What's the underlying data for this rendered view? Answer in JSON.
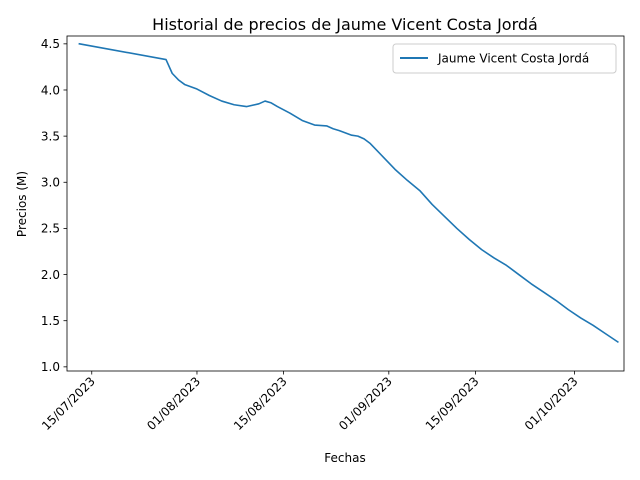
{
  "chart_data": {
    "type": "line",
    "title": "Historial de precios de Jaume Vicent Costa Jordá",
    "xlabel": "Fechas",
    "ylabel": "Precios (M)",
    "xlim": [
      "2023-07-11",
      "2023-10-09"
    ],
    "ylim": [
      0.955,
      4.585
    ],
    "x_ticks": [
      "2023-07-15",
      "2023-08-01",
      "2023-08-15",
      "2023-09-01",
      "2023-09-15",
      "2023-10-01"
    ],
    "x_tick_labels": [
      "15/07/2023",
      "01/08/2023",
      "15/08/2023",
      "01/09/2023",
      "15/09/2023",
      "01/10/2023"
    ],
    "y_ticks": [
      1.0,
      1.5,
      2.0,
      2.5,
      3.0,
      3.5,
      4.0,
      4.5
    ],
    "y_tick_labels": [
      "1.0",
      "1.5",
      "2.0",
      "2.5",
      "3.0",
      "3.5",
      "4.0",
      "4.5"
    ],
    "legend_position": "top-right",
    "grid": false,
    "series": [
      {
        "name": "Jaume Vicent Costa Jordá",
        "color": "#1f77b4",
        "x": [
          "2023-07-13",
          "2023-07-27",
          "2023-07-28",
          "2023-07-29",
          "2023-07-30",
          "2023-08-01",
          "2023-08-03",
          "2023-08-05",
          "2023-08-07",
          "2023-08-09",
          "2023-08-11",
          "2023-08-12",
          "2023-08-13",
          "2023-08-14",
          "2023-08-16",
          "2023-08-18",
          "2023-08-20",
          "2023-08-22",
          "2023-08-23",
          "2023-08-24",
          "2023-08-26",
          "2023-08-27",
          "2023-08-28",
          "2023-08-29",
          "2023-08-31",
          "2023-09-02",
          "2023-09-04",
          "2023-09-06",
          "2023-09-08",
          "2023-09-10",
          "2023-09-12",
          "2023-09-14",
          "2023-09-16",
          "2023-09-18",
          "2023-09-20",
          "2023-09-22",
          "2023-09-24",
          "2023-09-26",
          "2023-09-28",
          "2023-09-30",
          "2023-10-02",
          "2023-10-04",
          "2023-10-06",
          "2023-10-08"
        ],
        "values": [
          4.5,
          4.33,
          4.18,
          4.11,
          4.06,
          4.01,
          3.94,
          3.88,
          3.84,
          3.82,
          3.85,
          3.88,
          3.86,
          3.82,
          3.75,
          3.67,
          3.62,
          3.61,
          3.58,
          3.56,
          3.51,
          3.5,
          3.47,
          3.42,
          3.28,
          3.14,
          3.02,
          2.91,
          2.76,
          2.63,
          2.5,
          2.38,
          2.27,
          2.18,
          2.1,
          2.0,
          1.9,
          1.81,
          1.72,
          1.62,
          1.53,
          1.45,
          1.36,
          1.27
        ]
      }
    ]
  }
}
